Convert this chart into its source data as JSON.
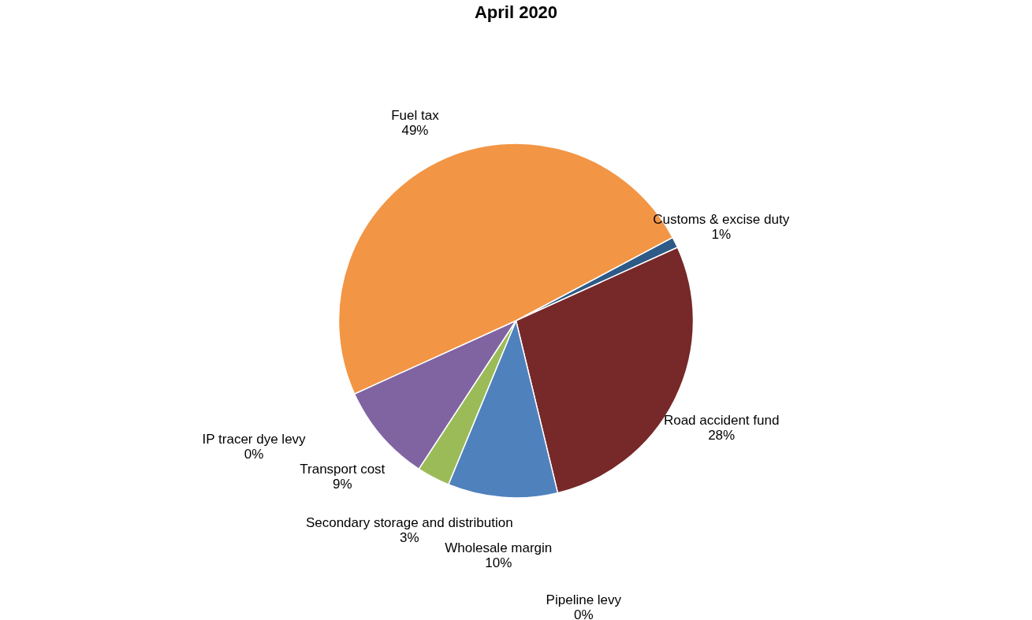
{
  "chart_data": {
    "type": "pie",
    "title": "April 2020",
    "categories": [
      "Customs & excise duty",
      "Road accident fund",
      "Pipeline levy",
      "Wholesale margin",
      "Secondary storage and distribution",
      "Transport cost",
      "IP tracer dye levy",
      "Fuel tax"
    ],
    "values": [
      1,
      28,
      0,
      10,
      3,
      9,
      0,
      49
    ],
    "value_labels": [
      "1%",
      "28%",
      "0%",
      "10%",
      "3%",
      "9%",
      "0%",
      "49%"
    ],
    "colors": [
      "#2e5a87",
      "#772828",
      "#4bacc6",
      "#4f81bd",
      "#9bbb59",
      "#8064a2",
      "#4bacc6",
      "#f29545"
    ],
    "legend": false
  }
}
